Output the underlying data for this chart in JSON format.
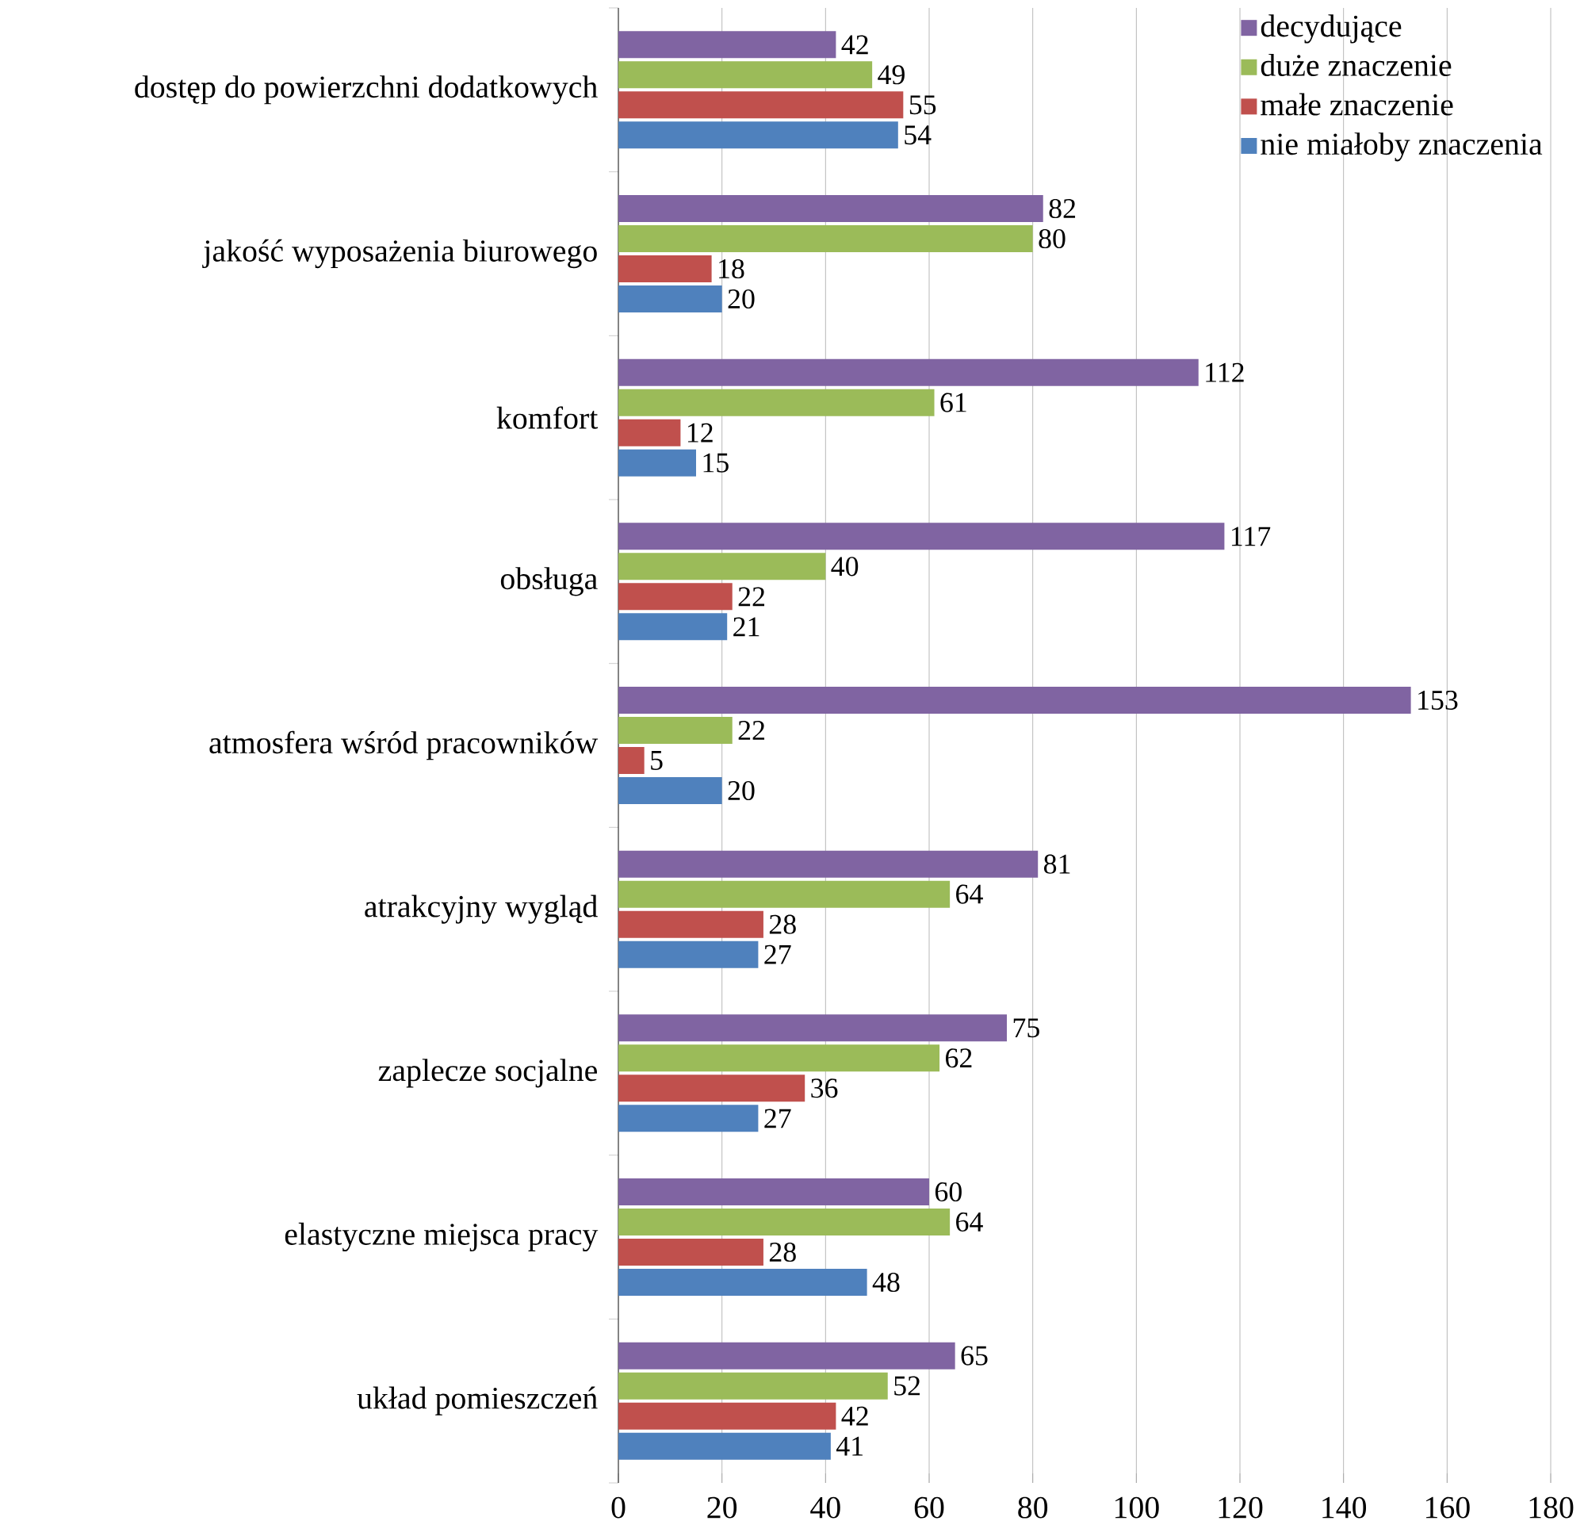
{
  "chart_data": {
    "type": "bar",
    "orientation": "horizontal",
    "categories": [
      "dostęp do powierzchni dodatkowych",
      "jakość wyposażenia biurowego",
      "komfort",
      "obsługa",
      "atmosfera wśród pracowników",
      "atrakcyjny wygląd",
      "zaplecze socjalne",
      "elastyczne miejsca pracy",
      "układ pomieszczeń"
    ],
    "series": [
      {
        "name": "decydujące",
        "color": "#8064a2",
        "values": [
          42,
          82,
          112,
          117,
          153,
          81,
          75,
          60,
          65
        ]
      },
      {
        "name": "duże znaczenie",
        "color": "#9bbb59",
        "values": [
          49,
          80,
          61,
          40,
          22,
          64,
          62,
          64,
          52
        ]
      },
      {
        "name": "małe znaczenie",
        "color": "#c0504d",
        "values": [
          55,
          18,
          12,
          22,
          5,
          28,
          36,
          28,
          42
        ]
      },
      {
        "name": "nie miałoby znaczenia",
        "color": "#4f81bd",
        "values": [
          54,
          20,
          15,
          21,
          20,
          27,
          27,
          48,
          41
        ]
      }
    ],
    "xlim": [
      0,
      180
    ],
    "xticks": [
      0,
      20,
      40,
      60,
      80,
      100,
      120,
      140,
      160,
      180
    ],
    "grid": "x",
    "legend": "top right",
    "data_labels": true
  }
}
